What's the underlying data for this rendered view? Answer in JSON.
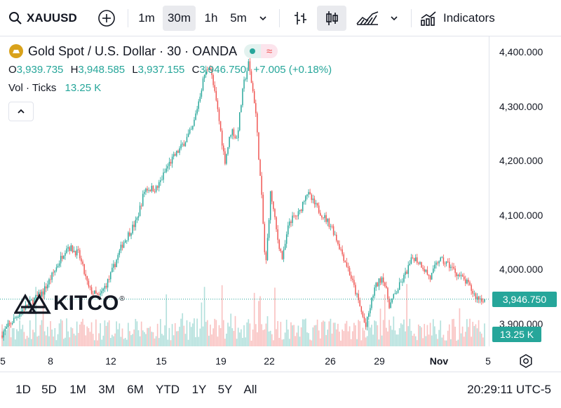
{
  "toolbar": {
    "symbol": "XAUUSD",
    "intervals": [
      "1m",
      "30m",
      "1h",
      "5m"
    ],
    "active_interval": "30m",
    "indicators_label": "Indicators"
  },
  "legend": {
    "title": "Gold Spot / U.S. Dollar · 30 · OANDA",
    "o_label": "O",
    "o_value": "3,939.735",
    "h_label": "H",
    "h_value": "3,948.585",
    "l_label": "L",
    "l_value": "3,937.155",
    "c_label": "C",
    "c_value": "3,946.750",
    "change": "+7.005 (+0.18%)",
    "vol_label": "Vol · Ticks",
    "vol_value": "13.25 K"
  },
  "watermark": "KITCO",
  "price_tag": "3,946.750",
  "volume_tag": "13.25 K",
  "time_label": "20:29:11 UTC-5",
  "ranges": [
    "1D",
    "5D",
    "1M",
    "3M",
    "6M",
    "YTD",
    "1Y",
    "5Y",
    "All"
  ],
  "colors": {
    "up": "#26a69a",
    "down": "#ef5350",
    "accent": "#2962ff"
  },
  "chart_data": {
    "type": "candlestick",
    "title": "Gold Spot / U.S. Dollar · 30 · OANDA",
    "ylim": [
      3860,
      4430
    ],
    "y_ticks": [
      3900,
      4000,
      4100,
      4200,
      4300,
      4400
    ],
    "y_tick_labels": [
      "3,900.000",
      "4,000.000",
      "4,100.000",
      "4,200.000",
      "4,300.000",
      "4,400.000"
    ],
    "x_ticks": [
      "5",
      "8",
      "12",
      "15",
      "19",
      "22",
      "26",
      "29",
      "Nov",
      "5"
    ],
    "last_price": 3946.75,
    "close_path": [
      {
        "x": 0.0,
        "y": 3880
      },
      {
        "x": 1.2,
        "y": 3925
      },
      {
        "x": 2.5,
        "y": 3960
      },
      {
        "x": 3.2,
        "y": 4000
      },
      {
        "x": 3.9,
        "y": 4045
      },
      {
        "x": 4.6,
        "y": 4030
      },
      {
        "x": 5.2,
        "y": 3965
      },
      {
        "x": 5.8,
        "y": 3950
      },
      {
        "x": 6.4,
        "y": 3985
      },
      {
        "x": 7.2,
        "y": 4050
      },
      {
        "x": 8.0,
        "y": 4090
      },
      {
        "x": 8.5,
        "y": 4150
      },
      {
        "x": 9.2,
        "y": 4150
      },
      {
        "x": 9.9,
        "y": 4195
      },
      {
        "x": 10.6,
        "y": 4225
      },
      {
        "x": 11.3,
        "y": 4260
      },
      {
        "x": 12.0,
        "y": 4360
      },
      {
        "x": 12.3,
        "y": 4380
      },
      {
        "x": 12.8,
        "y": 4290
      },
      {
        "x": 13.2,
        "y": 4200
      },
      {
        "x": 13.6,
        "y": 4260
      },
      {
        "x": 13.9,
        "y": 4240
      },
      {
        "x": 14.3,
        "y": 4340
      },
      {
        "x": 14.6,
        "y": 4380
      },
      {
        "x": 15.0,
        "y": 4300
      },
      {
        "x": 15.4,
        "y": 4120
      },
      {
        "x": 15.6,
        "y": 4000
      },
      {
        "x": 15.9,
        "y": 4145
      },
      {
        "x": 16.3,
        "y": 4060
      },
      {
        "x": 16.6,
        "y": 4020
      },
      {
        "x": 17.0,
        "y": 4090
      },
      {
        "x": 17.6,
        "y": 4105
      },
      {
        "x": 18.0,
        "y": 4145
      },
      {
        "x": 18.5,
        "y": 4120
      },
      {
        "x": 19.0,
        "y": 4100
      },
      {
        "x": 19.5,
        "y": 4080
      },
      {
        "x": 20.0,
        "y": 4040
      },
      {
        "x": 20.5,
        "y": 4000
      },
      {
        "x": 21.0,
        "y": 3950
      },
      {
        "x": 21.5,
        "y": 3895
      },
      {
        "x": 22.0,
        "y": 3965
      },
      {
        "x": 22.5,
        "y": 3990
      },
      {
        "x": 22.9,
        "y": 3935
      },
      {
        "x": 23.3,
        "y": 3960
      },
      {
        "x": 23.8,
        "y": 3990
      },
      {
        "x": 24.3,
        "y": 4025
      },
      {
        "x": 24.8,
        "y": 4010
      },
      {
        "x": 25.3,
        "y": 3985
      },
      {
        "x": 25.8,
        "y": 4020
      },
      {
        "x": 26.4,
        "y": 4010
      },
      {
        "x": 27.0,
        "y": 3990
      },
      {
        "x": 27.5,
        "y": 3975
      },
      {
        "x": 28.0,
        "y": 3950
      },
      {
        "x": 28.5,
        "y": 3946
      }
    ]
  }
}
